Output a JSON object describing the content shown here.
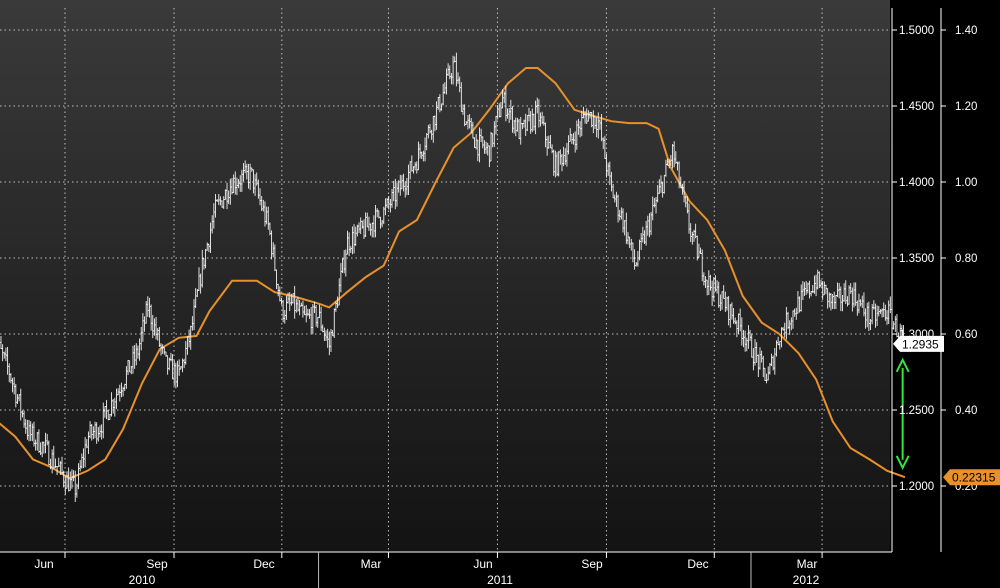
{
  "chart_data": {
    "type": "line",
    "title": "",
    "grid": true,
    "x_axis": {
      "month_labels": [
        "Jun",
        "Sep",
        "Dec",
        "Mar",
        "Jun",
        "Sep",
        "Dec",
        "Mar"
      ],
      "year_labels": [
        "2010",
        "2011",
        "2012"
      ]
    },
    "y_axis_left": {
      "ticks": [
        "1.5000",
        "1.4500",
        "1.4000",
        "1.3500",
        "1.3000",
        "1.2500",
        "1.2000"
      ],
      "range": [
        1.155,
        1.515
      ]
    },
    "y_axis_right": {
      "ticks": [
        "1.40",
        "1.20",
        "1.00",
        "0.80",
        "0.60",
        "0.40",
        "0.20"
      ],
      "range": [
        0.07,
        1.45
      ]
    },
    "series": [
      {
        "name": "",
        "axis": "left",
        "style": "price-bars",
        "color": "#ffffff",
        "last_value": "1.2935",
        "points": [
          [
            "2010-04-01",
            1.3
          ],
          [
            "2010-04-15",
            1.275
          ],
          [
            "2010-05-01",
            1.235
          ],
          [
            "2010-05-15",
            1.225
          ],
          [
            "2010-06-01",
            1.205
          ],
          [
            "2010-06-10",
            1.198
          ],
          [
            "2010-06-20",
            1.232
          ],
          [
            "2010-07-01",
            1.24
          ],
          [
            "2010-07-15",
            1.262
          ],
          [
            "2010-08-01",
            1.287
          ],
          [
            "2010-08-10",
            1.318
          ],
          [
            "2010-08-25",
            1.28
          ],
          [
            "2010-09-05",
            1.272
          ],
          [
            "2010-09-15",
            1.3
          ],
          [
            "2010-09-25",
            1.345
          ],
          [
            "2010-10-05",
            1.38
          ],
          [
            "2010-10-20",
            1.4
          ],
          [
            "2010-11-05",
            1.405
          ],
          [
            "2010-11-20",
            1.37
          ],
          [
            "2010-12-01",
            1.315
          ],
          [
            "2010-12-10",
            1.32
          ],
          [
            "2010-12-20",
            1.31
          ],
          [
            "2011-01-01",
            1.312
          ],
          [
            "2011-01-10",
            1.292
          ],
          [
            "2011-01-25",
            1.36
          ],
          [
            "2011-02-10",
            1.37
          ],
          [
            "2011-02-25",
            1.38
          ],
          [
            "2011-03-10",
            1.395
          ],
          [
            "2011-03-25",
            1.415
          ],
          [
            "2011-04-10",
            1.445
          ],
          [
            "2011-04-25",
            1.478
          ],
          [
            "2011-05-05",
            1.44
          ],
          [
            "2011-05-15",
            1.425
          ],
          [
            "2011-05-25",
            1.42
          ],
          [
            "2011-06-05",
            1.455
          ],
          [
            "2011-06-20",
            1.432
          ],
          [
            "2011-07-05",
            1.445
          ],
          [
            "2011-07-20",
            1.41
          ],
          [
            "2011-08-01",
            1.425
          ],
          [
            "2011-08-15",
            1.445
          ],
          [
            "2011-08-25",
            1.44
          ],
          [
            "2011-09-05",
            1.395
          ],
          [
            "2011-09-15",
            1.375
          ],
          [
            "2011-09-25",
            1.345
          ],
          [
            "2011-10-10",
            1.38
          ],
          [
            "2011-10-27",
            1.42
          ],
          [
            "2011-11-10",
            1.37
          ],
          [
            "2011-11-25",
            1.335
          ],
          [
            "2011-12-10",
            1.32
          ],
          [
            "2011-12-25",
            1.302
          ],
          [
            "2012-01-05",
            1.285
          ],
          [
            "2012-01-15",
            1.27
          ],
          [
            "2012-01-25",
            1.3
          ],
          [
            "2012-02-10",
            1.32
          ],
          [
            "2012-02-25",
            1.335
          ],
          [
            "2012-03-10",
            1.32
          ],
          [
            "2012-03-25",
            1.328
          ],
          [
            "2012-04-10",
            1.31
          ],
          [
            "2012-04-25",
            1.315
          ],
          [
            "2012-05-10",
            1.2935
          ]
        ]
      },
      {
        "name": "",
        "axis": "right",
        "style": "line",
        "color": "#e8912a",
        "last_value": "0.22315",
        "points": [
          [
            "2010-04-01",
            0.38
          ],
          [
            "2010-04-20",
            0.33
          ],
          [
            "2010-05-05",
            0.27
          ],
          [
            "2010-05-20",
            0.25
          ],
          [
            "2010-06-05",
            0.22
          ],
          [
            "2010-06-20",
            0.24
          ],
          [
            "2010-07-05",
            0.27
          ],
          [
            "2010-07-20",
            0.35
          ],
          [
            "2010-08-05",
            0.47
          ],
          [
            "2010-08-20",
            0.56
          ],
          [
            "2010-09-05",
            0.59
          ],
          [
            "2010-09-20",
            0.595
          ],
          [
            "2010-10-01",
            0.66
          ],
          [
            "2010-10-20",
            0.74
          ],
          [
            "2010-11-10",
            0.74
          ],
          [
            "2010-11-25",
            0.71
          ],
          [
            "2010-12-10",
            0.7
          ],
          [
            "2011-01-01",
            0.68
          ],
          [
            "2011-01-10",
            0.67
          ],
          [
            "2011-01-25",
            0.71
          ],
          [
            "2011-02-10",
            0.75
          ],
          [
            "2011-02-25",
            0.78
          ],
          [
            "2011-03-10",
            0.87
          ],
          [
            "2011-03-25",
            0.9
          ],
          [
            "2011-04-10",
            1.0
          ],
          [
            "2011-04-25",
            1.09
          ],
          [
            "2011-05-10",
            1.13
          ],
          [
            "2011-05-25",
            1.19
          ],
          [
            "2011-06-10",
            1.26
          ],
          [
            "2011-06-25",
            1.3
          ],
          [
            "2011-07-05",
            1.3
          ],
          [
            "2011-07-20",
            1.26
          ],
          [
            "2011-08-05",
            1.19
          ],
          [
            "2011-08-20",
            1.175
          ],
          [
            "2011-09-05",
            1.16
          ],
          [
            "2011-09-20",
            1.155
          ],
          [
            "2011-10-05",
            1.155
          ],
          [
            "2011-10-15",
            1.14
          ],
          [
            "2011-10-25",
            1.04
          ],
          [
            "2011-11-10",
            0.95
          ],
          [
            "2011-11-25",
            0.9
          ],
          [
            "2011-12-10",
            0.82
          ],
          [
            "2011-12-25",
            0.7
          ],
          [
            "2012-01-10",
            0.63
          ],
          [
            "2012-01-25",
            0.6
          ],
          [
            "2012-02-10",
            0.55
          ],
          [
            "2012-02-25",
            0.48
          ],
          [
            "2012-03-10",
            0.37
          ],
          [
            "2012-03-25",
            0.3
          ],
          [
            "2012-04-10",
            0.27
          ],
          [
            "2012-04-25",
            0.24
          ],
          [
            "2012-05-10",
            0.22315
          ]
        ]
      }
    ],
    "annotations": [
      {
        "type": "double-arrow",
        "color": "#33e63a",
        "date": "2012-05-08",
        "from_left_value": 1.283,
        "to_left_value": 1.212
      }
    ]
  }
}
